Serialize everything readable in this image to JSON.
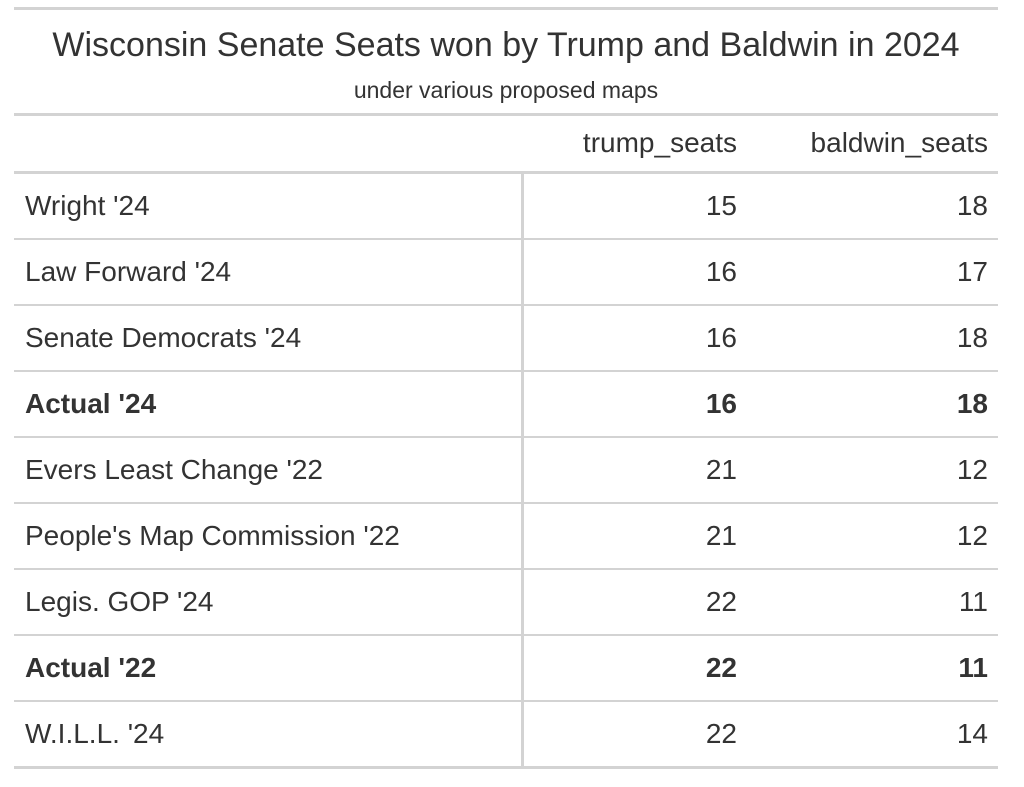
{
  "chart_data": {
    "type": "table",
    "title": "Wisconsin Senate Seats won by Trump and Baldwin in 2024",
    "subtitle": "under various proposed maps",
    "columns": [
      "trump_seats",
      "baldwin_seats"
    ],
    "rows": [
      {
        "label": "Wright '24",
        "trump_seats": "15",
        "baldwin_seats": "18",
        "bold": false
      },
      {
        "label": "Law Forward '24",
        "trump_seats": "16",
        "baldwin_seats": "17",
        "bold": false
      },
      {
        "label": "Senate Democrats '24",
        "trump_seats": "16",
        "baldwin_seats": "18",
        "bold": false
      },
      {
        "label": "Actual '24",
        "trump_seats": "16",
        "baldwin_seats": "18",
        "bold": true
      },
      {
        "label": "Evers Least Change '22",
        "trump_seats": "21",
        "baldwin_seats": "12",
        "bold": false
      },
      {
        "label": "People's Map Commission '22",
        "trump_seats": "21",
        "baldwin_seats": "12",
        "bold": false
      },
      {
        "label": "Legis. GOP '24",
        "trump_seats": "22",
        "baldwin_seats": "11",
        "bold": false
      },
      {
        "label": "Actual '22",
        "trump_seats": "22",
        "baldwin_seats": "11",
        "bold": true
      },
      {
        "label": "W.I.L.L. '24",
        "trump_seats": "22",
        "baldwin_seats": "14",
        "bold": false
      }
    ]
  },
  "colors": {
    "text": "#333333",
    "rule": "#d3d3d3",
    "background": "#ffffff"
  }
}
